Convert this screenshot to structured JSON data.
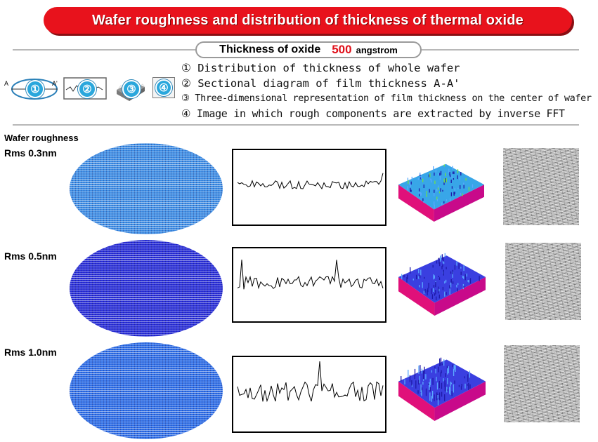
{
  "title": "Wafer roughness and distribution of thickness of thermal oxide",
  "oxide": {
    "label": "Thickness of oxide",
    "value": "500",
    "unit": "angstrom"
  },
  "legend": {
    "badges": [
      "①",
      "②",
      "③",
      "④"
    ],
    "axis_a": "A",
    "axis_a_prime": "A'",
    "items": [
      "① Distribution of thickness of whole wafer",
      "② Sectional diagram of film thickness A-A'",
      "③ Three-dimensional representation of film thickness on the center of wafer",
      "④ Image in which rough components are extracted by inverse FFT"
    ]
  },
  "section_label": "Wafer roughness",
  "rows": [
    {
      "label": "Rms 0.3nm",
      "wafer_color": "#3f8fe6",
      "trace_seed": 3
    },
    {
      "label": "Rms 0.5nm",
      "wafer_color": "#2a2fd8",
      "trace_seed": 5
    },
    {
      "label": "Rms 1.0nm",
      "wafer_color": "#2f6fe8",
      "trace_seed": 9
    }
  ],
  "colors": {
    "banner": "#e8121c",
    "accent_value": "#e0101a",
    "badge": "#2aa7dc",
    "surface_base": "#e0107a"
  }
}
